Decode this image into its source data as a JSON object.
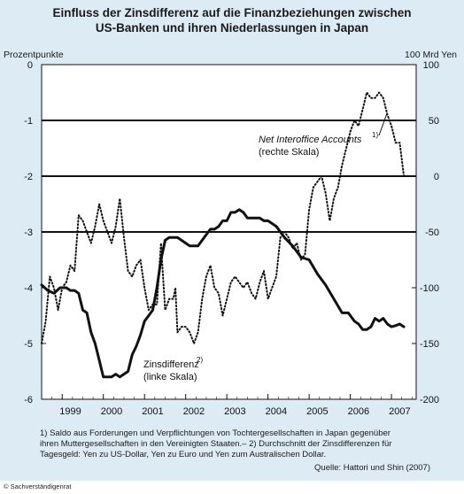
{
  "title_line1": "Einfluss der Zinsdifferenz auf die Finanzbeziehungen zwischen",
  "title_line2": "US-Banken und ihren Niederlassungen in Japan",
  "left_unit": "Prozentpunkte",
  "right_unit": "100 Mrd Yen",
  "footnote_line1": "1) Saldo aus Forderungen und Verpflichtungen von Tochtergesellschaften in Japan gegenüber",
  "footnote_line2": "ihren Muttergesellschaften in den Vereinigten Staaten.– 2) Durchschnitt der Zinsdifferenzen für",
  "footnote_line3": "Tagesgeld: Yen zu US-Dollar, Yen zu Euro und Yen zum Australischen Dollar.",
  "source": "Quelle: Hattori und Shin (2007)",
  "copyright": "© Sachverständigenrat",
  "colors": {
    "background": "#dcebf4",
    "line": "#111111"
  },
  "chart_data": {
    "type": "line",
    "x_ticks": [
      "1999",
      "2000",
      "2001",
      "2002",
      "2003",
      "2004",
      "2005",
      "2006",
      "2007"
    ],
    "xlim": [
      1998.5,
      2007.6
    ],
    "y_left": {
      "lim": [
        -6,
        0
      ],
      "ticks": [
        "0",
        "-1",
        "-2",
        "-3",
        "-4",
        "-5",
        "-6"
      ]
    },
    "y_right": {
      "lim": [
        -200,
        100
      ],
      "ticks": [
        "100",
        "50",
        "0",
        "-50",
        "-100",
        "-150",
        "-200"
      ]
    },
    "gridlines_left": [
      -1,
      -2,
      -3
    ],
    "series": [
      {
        "name": "Zinsdifferenz",
        "superscript": "2)",
        "sub": "(linke Skala)",
        "axis": "left",
        "style": "solid",
        "x": [
          1998.5,
          1998.65,
          1998.8,
          1998.95,
          1999.1,
          1999.2,
          1999.3,
          1999.4,
          1999.5,
          1999.6,
          1999.7,
          1999.8,
          1999.9,
          2000.0,
          2000.1,
          2000.2,
          2000.3,
          2000.4,
          2000.5,
          2000.6,
          2000.7,
          2000.8,
          2000.9,
          2001.0,
          2001.1,
          2001.2,
          2001.3,
          2001.4,
          2001.5,
          2001.6,
          2001.7,
          2001.8,
          2001.9,
          2002.0,
          2002.1,
          2002.2,
          2002.3,
          2002.5,
          2002.6,
          2002.7,
          2002.8,
          2002.9,
          2003.0,
          2003.1,
          2003.2,
          2003.3,
          2003.4,
          2003.5,
          2003.6,
          2003.7,
          2003.8,
          2003.9,
          2004.0,
          2004.2,
          2004.4,
          2004.6,
          2004.8,
          2005.0,
          2005.2,
          2005.4,
          2005.6,
          2005.8,
          2005.95,
          2006.1,
          2006.2,
          2006.3,
          2006.4,
          2006.5,
          2006.6,
          2006.7,
          2006.8,
          2006.9,
          2007.0,
          2007.1,
          2007.2,
          2007.3
        ],
        "y": [
          -3.95,
          -4.05,
          -4.1,
          -4.0,
          -4.0,
          -4.05,
          -4.05,
          -4.1,
          -4.4,
          -4.45,
          -4.8,
          -5.0,
          -5.3,
          -5.6,
          -5.6,
          -5.6,
          -5.55,
          -5.6,
          -5.55,
          -5.5,
          -5.2,
          -5.05,
          -4.85,
          -4.6,
          -4.5,
          -4.4,
          -4.0,
          -3.5,
          -3.15,
          -3.1,
          -3.1,
          -3.1,
          -3.15,
          -3.2,
          -3.25,
          -3.25,
          -3.25,
          -3.05,
          -2.95,
          -2.95,
          -2.9,
          -2.8,
          -2.8,
          -2.65,
          -2.65,
          -2.6,
          -2.65,
          -2.75,
          -2.75,
          -2.75,
          -2.75,
          -2.8,
          -2.8,
          -2.9,
          -3.1,
          -3.25,
          -3.45,
          -3.5,
          -3.75,
          -3.95,
          -4.2,
          -4.45,
          -4.45,
          -4.6,
          -4.65,
          -4.75,
          -4.75,
          -4.7,
          -4.55,
          -4.6,
          -4.55,
          -4.65,
          -4.7,
          -4.68,
          -4.65,
          -4.7
        ]
      },
      {
        "name": "Net Interoffice Accounts",
        "superscript": "1)",
        "sub": "(rechte Skala)",
        "axis": "right",
        "style": "dotted",
        "x": [
          1998.5,
          1998.6,
          1998.7,
          1998.8,
          1998.9,
          1999.0,
          1999.1,
          1999.2,
          1999.3,
          1999.4,
          1999.5,
          1999.6,
          1999.7,
          1999.8,
          1999.9,
          2000.0,
          2000.1,
          2000.2,
          2000.3,
          2000.4,
          2000.5,
          2000.6,
          2000.7,
          2000.8,
          2000.9,
          2001.0,
          2001.1,
          2001.2,
          2001.3,
          2001.4,
          2001.5,
          2001.6,
          2001.7,
          2001.75,
          2001.8,
          2001.9,
          2002.0,
          2002.1,
          2002.2,
          2002.3,
          2002.4,
          2002.5,
          2002.6,
          2002.7,
          2002.8,
          2002.9,
          2003.0,
          2003.1,
          2003.2,
          2003.3,
          2003.4,
          2003.5,
          2003.6,
          2003.7,
          2003.8,
          2003.9,
          2004.0,
          2004.1,
          2004.2,
          2004.3,
          2004.4,
          2004.5,
          2004.6,
          2004.7,
          2004.8,
          2004.9,
          2005.0,
          2005.1,
          2005.2,
          2005.3,
          2005.4,
          2005.5,
          2005.6,
          2005.7,
          2005.8,
          2005.9,
          2006.0,
          2006.1,
          2006.2,
          2006.3,
          2006.4,
          2006.5,
          2006.6,
          2006.7,
          2006.8,
          2006.9,
          2007.0,
          2007.1,
          2007.2,
          2007.3
        ],
        "y": [
          -150,
          -130,
          -90,
          -100,
          -120,
          -100,
          -95,
          -80,
          -85,
          -35,
          -40,
          -50,
          -60,
          -45,
          -25,
          -40,
          -50,
          -60,
          -45,
          -20,
          -55,
          -85,
          -90,
          -80,
          -75,
          -100,
          -120,
          -115,
          -115,
          -60,
          -120,
          -110,
          -110,
          -100,
          -140,
          -135,
          -135,
          -140,
          -150,
          -140,
          -110,
          -90,
          -80,
          -100,
          -105,
          -125,
          -110,
          -95,
          -90,
          -95,
          -100,
          -95,
          -105,
          -110,
          -95,
          -85,
          -110,
          -100,
          -90,
          -55,
          -50,
          -55,
          -65,
          -60,
          -75,
          -70,
          -30,
          -10,
          -5,
          0,
          -15,
          -40,
          -20,
          -10,
          10,
          25,
          40,
          50,
          45,
          60,
          75,
          70,
          70,
          75,
          70,
          55,
          45,
          30,
          30,
          0
        ]
      }
    ]
  }
}
